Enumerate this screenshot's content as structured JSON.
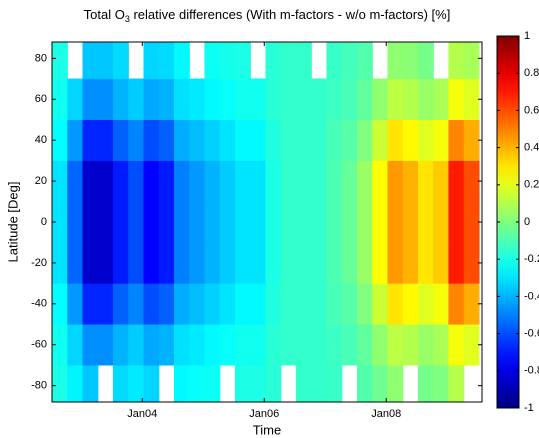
{
  "chart_data": {
    "type": "heatmap",
    "title": {
      "main": "Total O",
      "sub": "3",
      "rest": " relative differences (With m-factors - w/o m-factors) [%]"
    },
    "x_label": "Time",
    "y_label": "Latitude [Deg]",
    "x": [
      2002.65,
      2002.9,
      2003.15,
      2003.4,
      2003.65,
      2003.9,
      2004.15,
      2004.4,
      2004.65,
      2004.9,
      2005.15,
      2005.4,
      2005.65,
      2005.9,
      2006.15,
      2006.4,
      2006.65,
      2006.9,
      2007.15,
      2007.4,
      2007.65,
      2007.9,
      2008.15,
      2008.4,
      2008.65,
      2008.9,
      2009.15,
      2009.4
    ],
    "y": [
      -80,
      -60,
      -40,
      -20,
      0,
      20,
      40,
      60,
      80
    ],
    "z": [
      [
        -0.2,
        -0.27,
        -0.36,
        null,
        -0.32,
        -0.29,
        -0.33,
        null,
        -0.26,
        -0.24,
        -0.23,
        null,
        -0.2,
        -0.2,
        -0.17,
        null,
        -0.15,
        -0.15,
        -0.14,
        null,
        -0.09,
        -0.03,
        0.03,
        null,
        -0.02,
        0,
        0.1,
        null
      ],
      [
        -0.22,
        -0.33,
        -0.47,
        -0.47,
        -0.4,
        -0.35,
        -0.42,
        -0.4,
        -0.31,
        -0.29,
        -0.26,
        -0.24,
        -0.22,
        -0.22,
        -0.17,
        -0.15,
        -0.15,
        -0.15,
        -0.13,
        -0.11,
        -0.06,
        0.03,
        0.12,
        0.1,
        0.05,
        0.08,
        0.23,
        0.19
      ],
      [
        -0.25,
        -0.45,
        -0.68,
        -0.68,
        -0.56,
        -0.49,
        -0.6,
        -0.56,
        -0.41,
        -0.38,
        -0.34,
        -0.3,
        -0.26,
        -0.26,
        -0.19,
        -0.15,
        -0.15,
        -0.15,
        -0.11,
        -0.08,
        0,
        0.15,
        0.3,
        0.26,
        0.19,
        0.23,
        0.49,
        0.41
      ],
      [
        -0.3,
        -0.55,
        -0.85,
        -0.85,
        -0.7,
        -0.6,
        -0.75,
        -0.7,
        -0.5,
        -0.45,
        -0.4,
        -0.35,
        -0.3,
        -0.3,
        -0.2,
        -0.15,
        -0.15,
        -0.15,
        -0.1,
        -0.05,
        0.05,
        0.25,
        0.45,
        0.4,
        0.3,
        0.35,
        0.7,
        0.6
      ],
      [
        -0.3,
        -0.55,
        -0.85,
        -0.85,
        -0.7,
        -0.6,
        -0.75,
        -0.7,
        -0.5,
        -0.45,
        -0.4,
        -0.35,
        -0.3,
        -0.3,
        -0.2,
        -0.15,
        -0.15,
        -0.15,
        -0.1,
        -0.05,
        0.05,
        0.25,
        0.45,
        0.4,
        0.3,
        0.35,
        0.7,
        0.6
      ],
      [
        -0.3,
        -0.55,
        -0.85,
        -0.85,
        -0.7,
        -0.6,
        -0.75,
        -0.7,
        -0.5,
        -0.45,
        -0.4,
        -0.35,
        -0.3,
        -0.3,
        -0.2,
        -0.15,
        -0.15,
        -0.15,
        -0.1,
        -0.05,
        0.05,
        0.25,
        0.45,
        0.4,
        0.3,
        0.35,
        0.7,
        0.6
      ],
      [
        -0.25,
        -0.45,
        -0.68,
        -0.68,
        -0.56,
        -0.49,
        -0.6,
        -0.56,
        -0.41,
        -0.38,
        -0.34,
        -0.3,
        -0.26,
        -0.26,
        -0.19,
        -0.15,
        -0.15,
        -0.15,
        -0.11,
        -0.08,
        0,
        0.15,
        0.3,
        0.26,
        0.19,
        0.23,
        0.49,
        0.41
      ],
      [
        -0.22,
        -0.33,
        -0.47,
        -0.47,
        -0.4,
        -0.35,
        -0.42,
        -0.4,
        -0.31,
        -0.29,
        -0.26,
        -0.24,
        -0.22,
        -0.22,
        -0.17,
        -0.15,
        -0.15,
        -0.15,
        -0.13,
        -0.11,
        -0.06,
        0.03,
        0.12,
        0.1,
        0.05,
        0.08,
        0.23,
        0.19
      ],
      [
        -0.2,
        null,
        -0.36,
        -0.36,
        -0.32,
        null,
        -0.33,
        -0.32,
        -0.26,
        null,
        -0.23,
        -0.21,
        -0.2,
        null,
        -0.17,
        -0.15,
        -0.15,
        null,
        -0.14,
        -0.12,
        -0.09,
        null,
        0.03,
        0.02,
        -0.02,
        null,
        0.1,
        0.08
      ]
    ],
    "xlim": [
      2002.52,
      2009.57
    ],
    "xticks": [
      {
        "value": 2004,
        "label": "Jan04"
      },
      {
        "value": 2006,
        "label": "Jan06"
      },
      {
        "value": 2008,
        "label": "Jan08"
      }
    ],
    "ylim": [
      -88,
      88
    ],
    "yticks": [
      -80,
      -60,
      -40,
      -20,
      0,
      20,
      40,
      60,
      80
    ],
    "colormap": "jet",
    "clim": [
      -1,
      1
    ],
    "cticks": [
      -1,
      -0.8,
      -0.6,
      -0.4,
      -0.2,
      0,
      0.2,
      0.4,
      0.6,
      0.8,
      1
    ]
  }
}
